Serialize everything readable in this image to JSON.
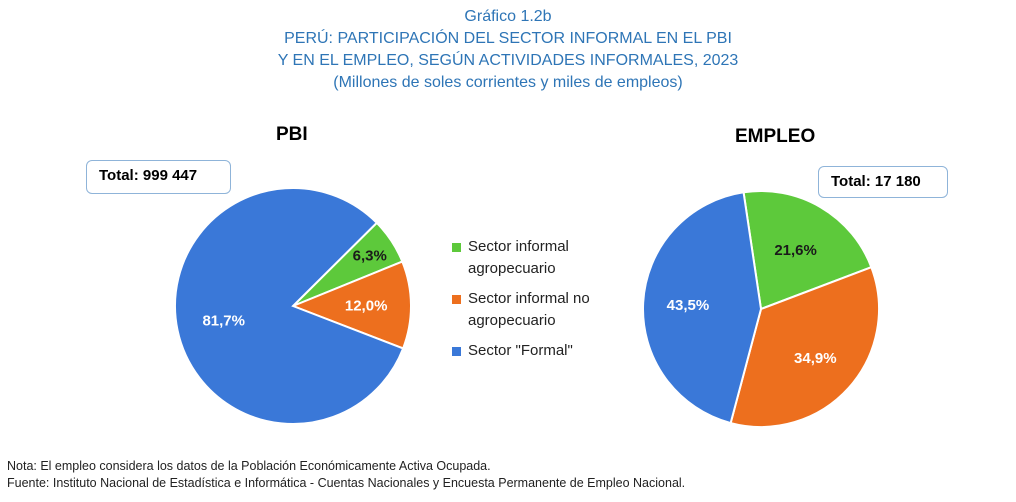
{
  "title": {
    "line1": "Gráfico 1.2b",
    "line2": "PERÚ: PARTICIPACIÓN DEL SECTOR INFORMAL EN EL PBI",
    "line3": "Y EN EL EMPLEO, SEGÚN ACTIVIDADES INFORMALES, 2023",
    "line4": "(Millones de soles corrientes y miles de empleos)"
  },
  "legend": [
    {
      "label": "Sector informal agropecuario",
      "color": "#5DC93B"
    },
    {
      "label": "Sector informal no agropecuario",
      "color": "#ED6F1E"
    },
    {
      "label": "Sector \"Formal\"",
      "color": "#3A78D8"
    }
  ],
  "chart_data": [
    {
      "type": "pie",
      "title": "PBI",
      "total_label": "Total:  999 447",
      "slices": [
        {
          "name": "Sector informal agropecuario",
          "value": 6.3,
          "label": "6,3%",
          "color": "#5DC93B"
        },
        {
          "name": "Sector informal no agropecuario",
          "value": 12.0,
          "label": "12,0%",
          "color": "#ED6F1E"
        },
        {
          "name": "Sector \"Formal\"",
          "value": 81.7,
          "label": "81,7%",
          "color": "#3A78D8"
        }
      ]
    },
    {
      "type": "pie",
      "title": "EMPLEO",
      "total_label": "Total:  17 180",
      "slices": [
        {
          "name": "Sector informal agropecuario",
          "value": 21.6,
          "label": "21,6%",
          "color": "#5DC93B"
        },
        {
          "name": "Sector informal no agropecuario",
          "value": 34.9,
          "label": "34,9%",
          "color": "#ED6F1E"
        },
        {
          "name": "Sector \"Formal\"",
          "value": 43.5,
          "label": "43,5%",
          "color": "#3A78D8"
        }
      ]
    }
  ],
  "notes": {
    "nota": "Nota: El empleo considera los datos de la Población Económicamente Activa Ocupada.",
    "fuente": "Fuente: Instituto Nacional de Estadística e Informática - Cuentas Nacionales y Encuesta Permanente de Empleo Nacional."
  }
}
